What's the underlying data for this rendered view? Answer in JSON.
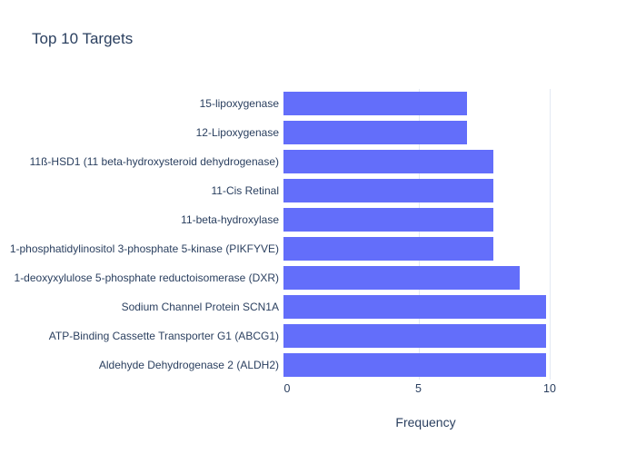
{
  "chart_data": {
    "type": "bar",
    "orientation": "horizontal",
    "title": "Top 10 Targets",
    "xlabel": "Frequency",
    "ylabel": "",
    "categories": [
      "15-lipoxygenase",
      "12-Lipoxygenase",
      "11ß-HSD1 (11 beta-hydroxysteroid dehydrogenase)",
      "11-Cis Retinal",
      "11-beta-hydroxylase",
      "1-phosphatidylinositol 3-phosphate 5-kinase (PIKFYVE)",
      "1-deoxyxylulose 5-phosphate reductoisomerase (DXR)",
      "Sodium Channel Protein SCN1A",
      "ATP-Binding Cassette Transporter G1 (ABCG1)",
      "Aldehyde Dehydrogenase 2 (ALDH2)"
    ],
    "values": [
      7,
      7,
      8,
      8,
      8,
      8,
      9,
      10,
      10,
      10
    ],
    "x_ticks": [
      0,
      5,
      10
    ],
    "xlim": [
      0,
      10.55
    ],
    "grid": true,
    "legend": false,
    "colors": {
      "bar": "#636EFA",
      "text": "#2A3F5F",
      "grid": "#E3E9F3",
      "background": "#FFFFFF"
    }
  }
}
